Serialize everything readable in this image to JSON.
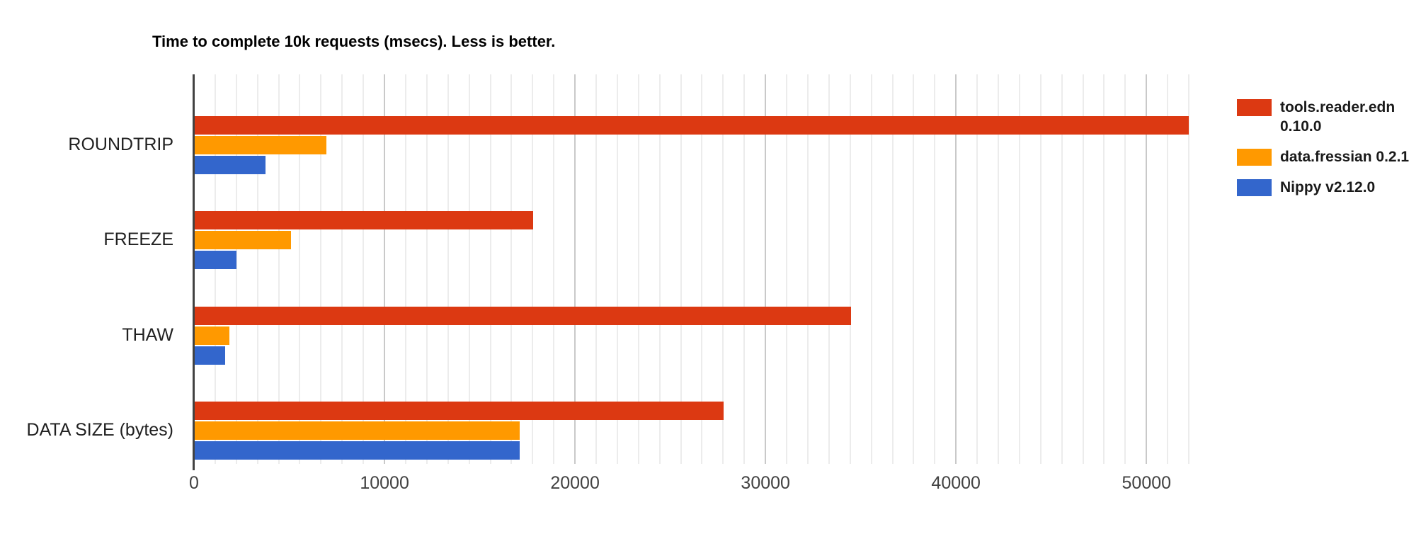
{
  "chart_data": {
    "type": "bar",
    "orientation": "horizontal",
    "title": "Time to complete 10k requests (msecs). Less is better.",
    "categories": [
      "ROUNDTRIP",
      "FREEZE",
      "THAW",
      "DATA SIZE (bytes)"
    ],
    "series": [
      {
        "name": "tools.reader.edn 0.10.0",
        "color": "#DC3912",
        "values": [
          52200,
          17800,
          34500,
          27800
        ]
      },
      {
        "name": "data.fressian 0.2.1",
        "color": "#FF9900",
        "values": [
          6950,
          5100,
          1840,
          17080
        ]
      },
      {
        "name": "Nippy v2.12.0",
        "color": "#3366CC",
        "values": [
          3770,
          2210,
          1620,
          17080
        ]
      }
    ],
    "x_axis": {
      "min": 0,
      "max": 53000,
      "tick_step": 10000,
      "ticks": [
        0,
        10000,
        20000,
        30000,
        40000,
        50000
      ],
      "tick_labels": [
        "0",
        "10000",
        "20000",
        "30000",
        "40000",
        "50000"
      ],
      "minor_divisions_per_major": 9
    },
    "legend_position": "right",
    "grid": true,
    "colors": {
      "major_gridline": "#c9c9c9",
      "minor_gridline": "#ececec",
      "axis_line": "#424242",
      "tick_label_text": "#424242",
      "category_label_text": "#212121",
      "title_text": "#000000",
      "legend_text": "#1a1a1a",
      "background": "#ffffff"
    }
  }
}
